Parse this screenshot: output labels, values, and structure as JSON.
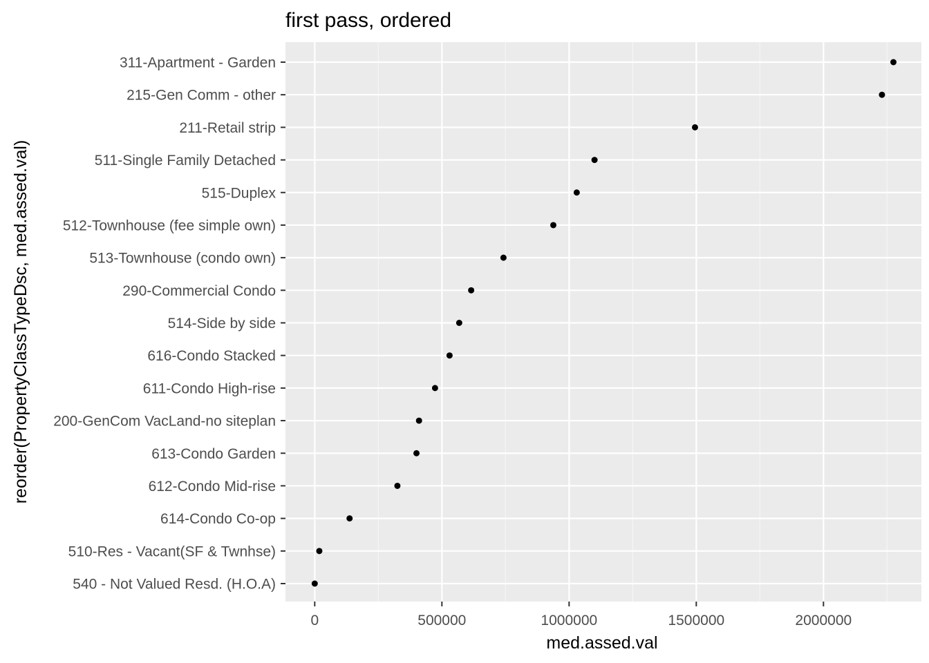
{
  "chart_data": {
    "type": "scatter",
    "title": "first pass, ordered",
    "xlabel": "med.assed.val",
    "ylabel": "reorder(PropertyClassTypeDsc, med.assed.val)",
    "xlim": [
      -115000,
      2385000
    ],
    "x_ticks": [
      0,
      500000,
      1000000,
      1500000,
      2000000
    ],
    "x_tick_labels": [
      "0",
      "500000",
      "1000000",
      "1500000",
      "2000000"
    ],
    "x_minor_ticks": [
      250000,
      750000,
      1250000,
      1750000,
      2250000
    ],
    "grid": true,
    "legend": "none",
    "categories": [
      "540 - Not Valued Resd. (H.O.A)",
      "510-Res - Vacant(SF & Twnhse)",
      "614-Condo Co-op",
      "612-Condo Mid-rise",
      "613-Condo Garden",
      "200-GenCom VacLand-no siteplan",
      "611-Condo High-rise",
      "616-Condo Stacked",
      "514-Side by side",
      "290-Commercial Condo",
      "513-Townhouse (condo own)",
      "512-Townhouse (fee simple own)",
      "515-Duplex",
      "511-Single Family Detached",
      "211-Retail strip",
      "215-Gen Comm - other",
      "311-Apartment - Garden"
    ],
    "values": [
      0,
      18000,
      137000,
      325000,
      400000,
      410000,
      473000,
      530000,
      568000,
      615000,
      742000,
      938000,
      1030000,
      1100000,
      1495000,
      2230000,
      2275000
    ],
    "colors": {
      "panel_background": "#ebebeb",
      "grid_major": "#ffffff",
      "grid_minor": "#f5f5f5",
      "point": "#000000",
      "tick_text": "#4d4d4d",
      "tick_mark": "#333333"
    }
  }
}
